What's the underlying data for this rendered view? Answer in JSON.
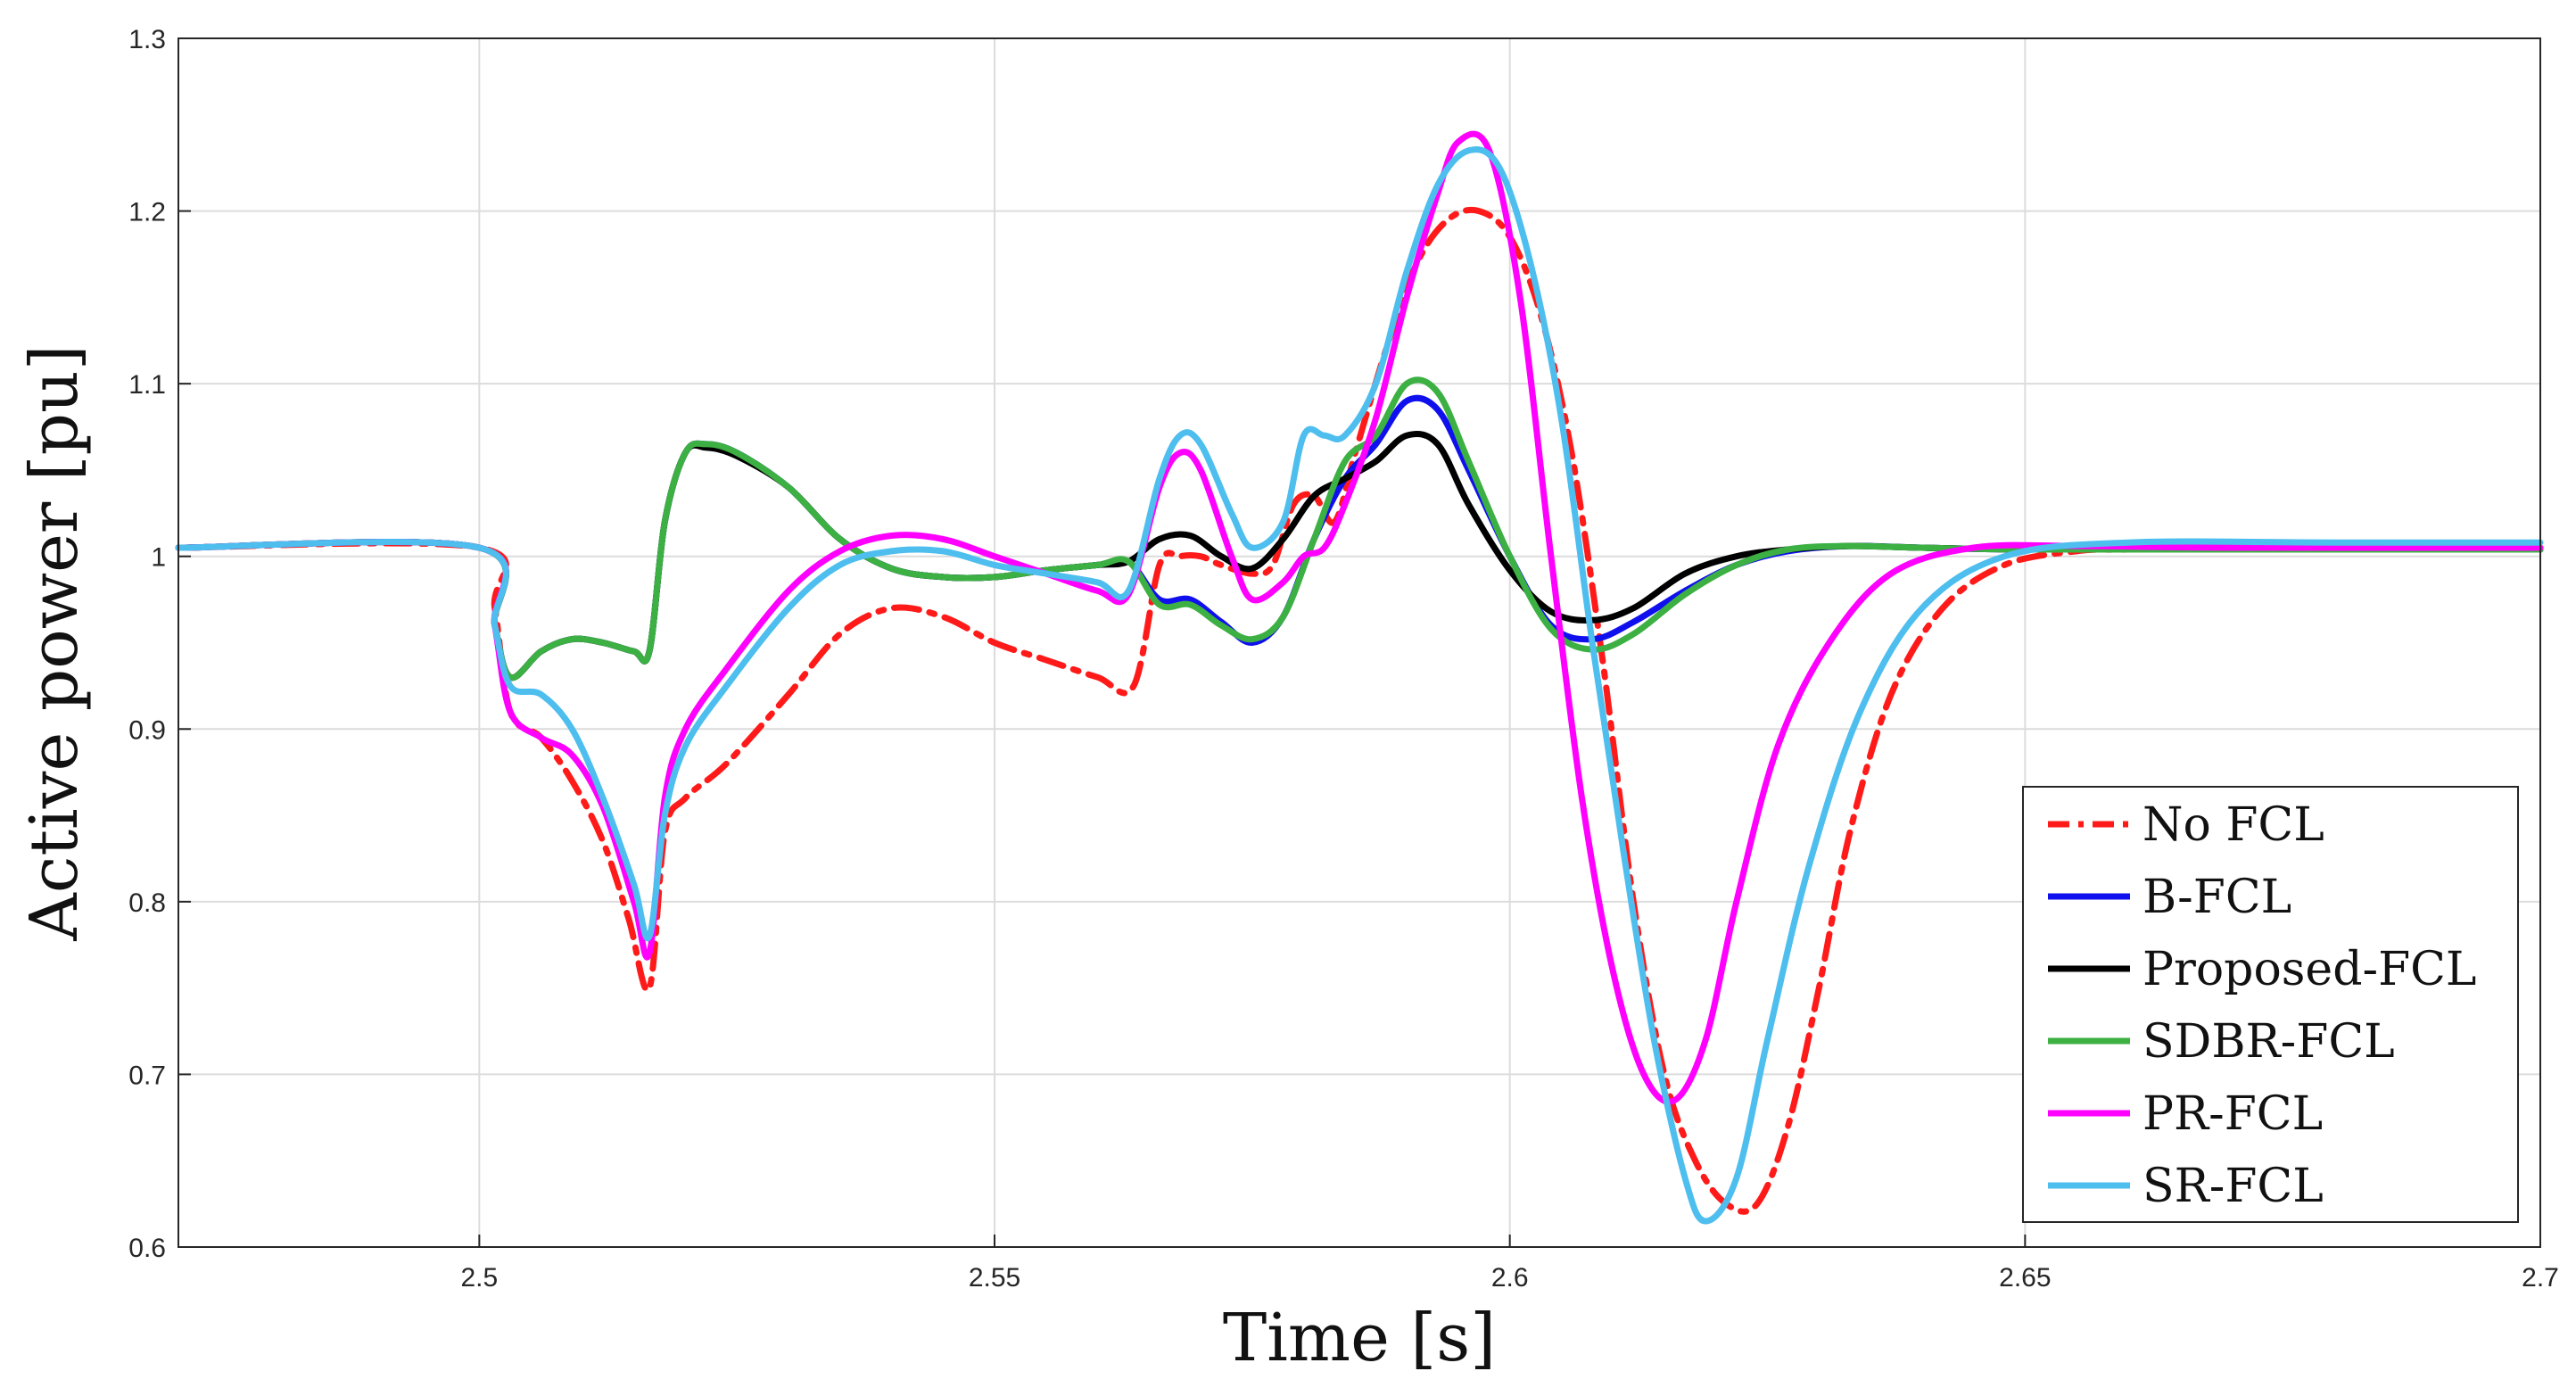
{
  "chart_data": {
    "type": "line",
    "title": "",
    "xlabel": "Time [s]",
    "ylabel": "Active power [pu]",
    "xlim": [
      2.4708,
      2.7
    ],
    "ylim": [
      0.6,
      1.3
    ],
    "xticks": [
      2.5,
      2.55,
      2.6,
      2.65,
      2.7
    ],
    "xtick_labels": [
      "2.5",
      "2.55",
      "2.6",
      "2.65",
      "2.7"
    ],
    "yticks": [
      0.6,
      0.7,
      0.8,
      0.9,
      1.0,
      1.1,
      1.2,
      1.3
    ],
    "ytick_labels": [
      "0.6",
      "0.7",
      "0.8",
      "0.9",
      "1",
      "1.1",
      "1.2",
      "1.3"
    ],
    "grid": true,
    "legend_position": "bottom-right",
    "series": [
      {
        "name": "No FCL",
        "color": "#ff1a1a",
        "dashed": true,
        "x": [
          2.4708,
          2.5,
          2.5015,
          2.503,
          2.506,
          2.509,
          2.512,
          2.5145,
          2.5165,
          2.518,
          2.52,
          2.524,
          2.53,
          2.535,
          2.54,
          2.545,
          2.55,
          2.555,
          2.56,
          2.5635,
          2.566,
          2.568,
          2.57,
          2.572,
          2.575,
          2.577,
          2.579,
          2.581,
          2.583,
          2.585,
          2.588,
          2.591,
          2.594,
          2.597,
          2.6,
          2.603,
          2.606,
          2.609,
          2.612,
          2.615,
          2.618,
          2.621,
          2.624,
          2.627,
          2.63,
          2.633,
          2.637,
          2.642,
          2.648,
          2.655,
          2.66,
          2.67,
          2.68,
          2.7
        ],
        "y": [
          1.005,
          1.005,
          0.97,
          0.91,
          0.895,
          0.87,
          0.835,
          0.79,
          0.75,
          0.84,
          0.86,
          0.88,
          0.92,
          0.955,
          0.97,
          0.965,
          0.95,
          0.94,
          0.93,
          0.925,
          0.995,
          1.0,
          1.0,
          0.995,
          0.99,
          0.995,
          1.03,
          1.035,
          1.02,
          1.06,
          1.12,
          1.17,
          1.195,
          1.2,
          1.185,
          1.14,
          1.06,
          0.94,
          0.8,
          0.7,
          0.65,
          0.625,
          0.625,
          0.67,
          0.75,
          0.84,
          0.92,
          0.97,
          0.995,
          1.003,
          1.004,
          1.005,
          1.005,
          1.005
        ]
      },
      {
        "name": "B-FCL",
        "color": "#1010ee",
        "dashed": false,
        "x": [
          2.4708,
          2.5,
          2.5015,
          2.503,
          2.506,
          2.509,
          2.512,
          2.515,
          2.5165,
          2.518,
          2.52,
          2.522,
          2.525,
          2.53,
          2.535,
          2.54,
          2.545,
          2.55,
          2.555,
          2.56,
          2.563,
          2.566,
          2.569,
          2.572,
          2.575,
          2.578,
          2.581,
          2.584,
          2.587,
          2.59,
          2.593,
          2.596,
          2.6,
          2.604,
          2.608,
          2.612,
          2.617,
          2.622,
          2.627,
          2.633,
          2.64,
          2.65,
          2.67,
          2.7
        ],
        "y": [
          1.005,
          1.005,
          0.96,
          0.93,
          0.945,
          0.952,
          0.95,
          0.945,
          0.945,
          1.02,
          1.06,
          1.065,
          1.06,
          1.04,
          1.01,
          0.993,
          0.988,
          0.988,
          0.992,
          0.995,
          0.997,
          0.975,
          0.975,
          0.962,
          0.95,
          0.965,
          1.01,
          1.045,
          1.065,
          1.09,
          1.085,
          1.05,
          1.0,
          0.96,
          0.952,
          0.962,
          0.98,
          0.995,
          1.003,
          1.006,
          1.005,
          1.004,
          1.004,
          1.004
        ]
      },
      {
        "name": "Proposed-FCL",
        "color": "#000000",
        "dashed": false,
        "x": [
          2.4708,
          2.5,
          2.5015,
          2.503,
          2.506,
          2.509,
          2.512,
          2.515,
          2.5165,
          2.518,
          2.52,
          2.522,
          2.525,
          2.53,
          2.535,
          2.54,
          2.545,
          2.55,
          2.555,
          2.56,
          2.563,
          2.566,
          2.569,
          2.572,
          2.575,
          2.578,
          2.581,
          2.584,
          2.587,
          2.59,
          2.593,
          2.596,
          2.6,
          2.604,
          2.608,
          2.612,
          2.617,
          2.622,
          2.627,
          2.633,
          2.64,
          2.65,
          2.67,
          2.7
        ],
        "y": [
          1.005,
          1.005,
          0.96,
          0.93,
          0.945,
          0.952,
          0.95,
          0.945,
          0.945,
          1.02,
          1.06,
          1.063,
          1.058,
          1.04,
          1.01,
          0.993,
          0.988,
          0.988,
          0.992,
          0.995,
          0.997,
          1.01,
          1.012,
          1.0,
          0.993,
          1.01,
          1.035,
          1.045,
          1.055,
          1.07,
          1.065,
          1.03,
          0.992,
          0.968,
          0.963,
          0.97,
          0.99,
          1.0,
          1.004,
          1.006,
          1.005,
          1.004,
          1.004,
          1.004
        ]
      },
      {
        "name": "SDBR-FCL",
        "color": "#3cb043",
        "dashed": false,
        "x": [
          2.4708,
          2.5,
          2.5015,
          2.503,
          2.506,
          2.509,
          2.512,
          2.515,
          2.5165,
          2.518,
          2.52,
          2.522,
          2.525,
          2.53,
          2.535,
          2.54,
          2.545,
          2.55,
          2.555,
          2.56,
          2.563,
          2.566,
          2.569,
          2.572,
          2.575,
          2.578,
          2.581,
          2.584,
          2.587,
          2.59,
          2.593,
          2.596,
          2.6,
          2.604,
          2.608,
          2.612,
          2.617,
          2.622,
          2.627,
          2.633,
          2.64,
          2.65,
          2.67,
          2.7
        ],
        "y": [
          1.005,
          1.005,
          0.96,
          0.93,
          0.945,
          0.952,
          0.95,
          0.945,
          0.945,
          1.02,
          1.06,
          1.065,
          1.06,
          1.04,
          1.01,
          0.993,
          0.988,
          0.988,
          0.992,
          0.995,
          0.997,
          0.972,
          0.972,
          0.96,
          0.952,
          0.965,
          1.01,
          1.055,
          1.07,
          1.1,
          1.095,
          1.055,
          1.0,
          0.958,
          0.946,
          0.955,
          0.978,
          0.995,
          1.004,
          1.006,
          1.005,
          1.004,
          1.004,
          1.004
        ]
      },
      {
        "name": "PR-FCL",
        "color": "#ff00ff",
        "dashed": false,
        "x": [
          2.4708,
          2.5,
          2.5015,
          2.503,
          2.506,
          2.509,
          2.512,
          2.515,
          2.5165,
          2.518,
          2.52,
          2.524,
          2.53,
          2.535,
          2.54,
          2.545,
          2.55,
          2.555,
          2.56,
          2.563,
          2.566,
          2.568,
          2.57,
          2.573,
          2.575,
          2.578,
          2.58,
          2.582,
          2.584,
          2.587,
          2.59,
          2.593,
          2.595,
          2.598,
          2.601,
          2.604,
          2.607,
          2.61,
          2.613,
          2.616,
          2.619,
          2.622,
          2.626,
          2.631,
          2.637,
          2.645,
          2.655,
          2.67,
          2.7
        ],
        "y": [
          1.005,
          1.005,
          0.96,
          0.91,
          0.895,
          0.885,
          0.855,
          0.8,
          0.77,
          0.86,
          0.9,
          0.935,
          0.98,
          1.003,
          1.012,
          1.01,
          1.0,
          0.99,
          0.98,
          0.978,
          1.04,
          1.06,
          1.05,
          1.0,
          0.975,
          0.985,
          1.0,
          1.005,
          1.03,
          1.08,
          1.15,
          1.21,
          1.24,
          1.235,
          1.15,
          1.0,
          0.86,
          0.76,
          0.7,
          0.685,
          0.72,
          0.8,
          0.89,
          0.95,
          0.99,
          1.005,
          1.006,
          1.005,
          1.005
        ]
      },
      {
        "name": "SR-FCL",
        "color": "#4dbeee",
        "dashed": false,
        "x": [
          2.4708,
          2.5,
          2.5015,
          2.503,
          2.506,
          2.509,
          2.512,
          2.515,
          2.5165,
          2.518,
          2.52,
          2.524,
          2.53,
          2.535,
          2.54,
          2.545,
          2.55,
          2.555,
          2.56,
          2.563,
          2.566,
          2.568,
          2.57,
          2.573,
          2.575,
          2.578,
          2.58,
          2.582,
          2.584,
          2.587,
          2.59,
          2.593,
          2.596,
          2.599,
          2.602,
          2.605,
          2.608,
          2.611,
          2.614,
          2.617,
          2.619,
          2.622,
          2.625,
          2.629,
          2.634,
          2.64,
          2.648,
          2.66,
          2.68,
          2.7
        ],
        "y": [
          1.005,
          1.005,
          0.96,
          0.925,
          0.92,
          0.9,
          0.86,
          0.81,
          0.78,
          0.85,
          0.89,
          0.925,
          0.97,
          0.995,
          1.003,
          1.003,
          0.995,
          0.99,
          0.985,
          0.98,
          1.045,
          1.07,
          1.065,
          1.025,
          1.005,
          1.02,
          1.07,
          1.07,
          1.07,
          1.1,
          1.165,
          1.215,
          1.235,
          1.225,
          1.17,
          1.08,
          0.95,
          0.83,
          0.72,
          0.64,
          0.615,
          0.64,
          0.72,
          0.82,
          0.91,
          0.97,
          1.0,
          1.008,
          1.008,
          1.008
        ]
      }
    ]
  }
}
